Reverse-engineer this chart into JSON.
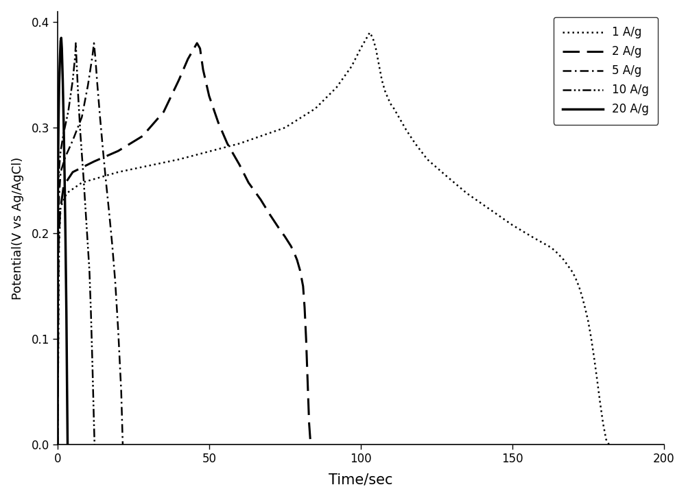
{
  "title": "",
  "xlabel": "Time/sec",
  "ylabel": "Potential(V vs Ag/AgCl)",
  "xlim": [
    0,
    200
  ],
  "ylim": [
    0.0,
    0.41
  ],
  "yticks": [
    0.0,
    0.1,
    0.2,
    0.3,
    0.4
  ],
  "xticks": [
    0,
    50,
    100,
    150,
    200
  ],
  "background_color": "#ffffff",
  "line_color": "#000000",
  "curves": {
    "1Ag": {
      "label": "1 A/g",
      "linestyle": "dotted",
      "linewidth": 1.8,
      "profile": [
        [
          0,
          0.0
        ],
        [
          0.5,
          0.19
        ],
        [
          1,
          0.225
        ],
        [
          3,
          0.238
        ],
        [
          8,
          0.248
        ],
        [
          20,
          0.258
        ],
        [
          40,
          0.27
        ],
        [
          60,
          0.285
        ],
        [
          75,
          0.3
        ],
        [
          85,
          0.318
        ],
        [
          92,
          0.338
        ],
        [
          97,
          0.358
        ],
        [
          100,
          0.375
        ],
        [
          103,
          0.39
        ],
        [
          104,
          0.385
        ],
        [
          105,
          0.375
        ],
        [
          106,
          0.36
        ],
        [
          107,
          0.345
        ],
        [
          108,
          0.335
        ],
        [
          109,
          0.328
        ],
        [
          110,
          0.322
        ],
        [
          111,
          0.318
        ],
        [
          112,
          0.313
        ],
        [
          113,
          0.308
        ],
        [
          115,
          0.298
        ],
        [
          118,
          0.285
        ],
        [
          122,
          0.27
        ],
        [
          128,
          0.255
        ],
        [
          135,
          0.238
        ],
        [
          143,
          0.222
        ],
        [
          150,
          0.208
        ],
        [
          157,
          0.196
        ],
        [
          162,
          0.188
        ],
        [
          164,
          0.184
        ],
        [
          165,
          0.181
        ],
        [
          166,
          0.178
        ],
        [
          167,
          0.175
        ],
        [
          168,
          0.171
        ],
        [
          169,
          0.167
        ],
        [
          170,
          0.163
        ],
        [
          171,
          0.157
        ],
        [
          172,
          0.15
        ],
        [
          173,
          0.141
        ],
        [
          174,
          0.13
        ],
        [
          175,
          0.118
        ],
        [
          176,
          0.102
        ],
        [
          177,
          0.083
        ],
        [
          178,
          0.062
        ],
        [
          179,
          0.04
        ],
        [
          180,
          0.02
        ],
        [
          181,
          0.005
        ],
        [
          182,
          0.0
        ]
      ]
    },
    "2Ag": {
      "label": "2 A/g",
      "linestyle": "dashed",
      "linewidth": 2.2,
      "profile": [
        [
          0,
          0.0
        ],
        [
          0.3,
          0.19
        ],
        [
          0.8,
          0.22
        ],
        [
          2,
          0.245
        ],
        [
          5,
          0.258
        ],
        [
          12,
          0.268
        ],
        [
          20,
          0.278
        ],
        [
          28,
          0.292
        ],
        [
          35,
          0.315
        ],
        [
          40,
          0.345
        ],
        [
          43,
          0.365
        ],
        [
          45,
          0.375
        ],
        [
          46,
          0.38
        ],
        [
          47,
          0.375
        ],
        [
          48,
          0.355
        ],
        [
          50,
          0.33
        ],
        [
          53,
          0.305
        ],
        [
          56,
          0.285
        ],
        [
          60,
          0.265
        ],
        [
          63,
          0.248
        ],
        [
          67,
          0.232
        ],
        [
          70,
          0.218
        ],
        [
          73,
          0.205
        ],
        [
          75,
          0.197
        ],
        [
          77,
          0.188
        ],
        [
          78,
          0.182
        ],
        [
          79,
          0.175
        ],
        [
          80,
          0.165
        ],
        [
          81,
          0.15
        ],
        [
          81.5,
          0.13
        ],
        [
          82,
          0.1
        ],
        [
          82.5,
          0.06
        ],
        [
          83,
          0.02
        ],
        [
          83.5,
          0.0
        ]
      ]
    },
    "5Ag": {
      "label": "5 A/g",
      "linestyle": "dashdot",
      "linewidth": 1.8,
      "profile": [
        [
          0,
          0.0
        ],
        [
          0.2,
          0.19
        ],
        [
          0.5,
          0.235
        ],
        [
          1,
          0.258
        ],
        [
          2.5,
          0.272
        ],
        [
          5,
          0.288
        ],
        [
          8,
          0.31
        ],
        [
          10,
          0.34
        ],
        [
          11.5,
          0.368
        ],
        [
          12,
          0.38
        ],
        [
          12.5,
          0.365
        ],
        [
          13,
          0.345
        ],
        [
          14,
          0.31
        ],
        [
          15,
          0.278
        ],
        [
          16,
          0.248
        ],
        [
          17,
          0.22
        ],
        [
          18,
          0.19
        ],
        [
          19,
          0.155
        ],
        [
          20,
          0.108
        ],
        [
          21,
          0.05
        ],
        [
          21.5,
          0.0
        ]
      ]
    },
    "10Ag": {
      "label": "10 A/g",
      "linestyle": "dashdotdot",
      "linewidth": 1.8,
      "profile": [
        [
          0,
          0.0
        ],
        [
          0.1,
          0.19
        ],
        [
          0.3,
          0.245
        ],
        [
          0.6,
          0.265
        ],
        [
          1,
          0.278
        ],
        [
          2,
          0.295
        ],
        [
          3.5,
          0.315
        ],
        [
          5,
          0.345
        ],
        [
          5.8,
          0.368
        ],
        [
          6,
          0.38
        ],
        [
          6.3,
          0.36
        ],
        [
          6.8,
          0.33
        ],
        [
          7.5,
          0.295
        ],
        [
          8.5,
          0.255
        ],
        [
          9.5,
          0.21
        ],
        [
          10.5,
          0.165
        ],
        [
          11,
          0.125
        ],
        [
          11.5,
          0.075
        ],
        [
          12,
          0.02
        ],
        [
          12.2,
          0.0
        ]
      ]
    },
    "20Ag": {
      "label": "20 A/g",
      "linestyle": "solid",
      "linewidth": 2.5,
      "profile": [
        [
          0,
          0.0
        ],
        [
          0.05,
          0.19
        ],
        [
          0.15,
          0.26
        ],
        [
          0.3,
          0.305
        ],
        [
          0.5,
          0.34
        ],
        [
          0.8,
          0.368
        ],
        [
          1.0,
          0.382
        ],
        [
          1.2,
          0.385
        ],
        [
          1.4,
          0.375
        ],
        [
          1.7,
          0.345
        ],
        [
          2.0,
          0.305
        ],
        [
          2.3,
          0.255
        ],
        [
          2.6,
          0.195
        ],
        [
          2.9,
          0.125
        ],
        [
          3.1,
          0.06
        ],
        [
          3.3,
          0.0
        ]
      ]
    }
  }
}
